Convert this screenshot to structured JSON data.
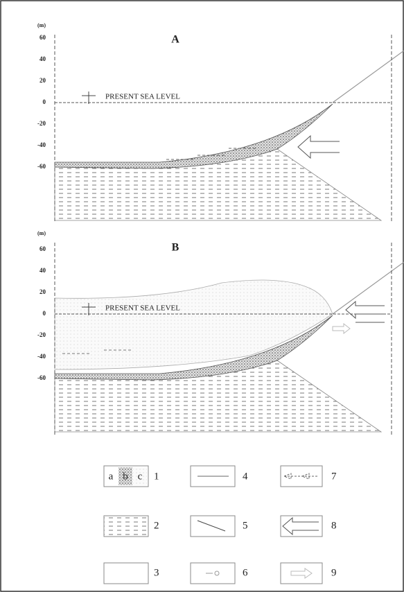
{
  "panels": [
    {
      "label": "A",
      "unit": "(m)",
      "ticks": [
        60,
        40,
        20,
        0,
        -20,
        -40,
        -60
      ],
      "sea_level": "PRESENT SEA LEVEL"
    },
    {
      "label": "B",
      "unit": "(m)",
      "ticks": [
        60,
        40,
        20,
        0,
        -20,
        -40,
        -60
      ],
      "sea_level": "PRESENT SEA LEVEL"
    }
  ],
  "legend": {
    "sublabels": [
      "a",
      "b",
      "c"
    ],
    "numbers": [
      "1",
      "2",
      "3",
      "4",
      "5",
      "6",
      "7",
      "8",
      "9"
    ]
  }
}
